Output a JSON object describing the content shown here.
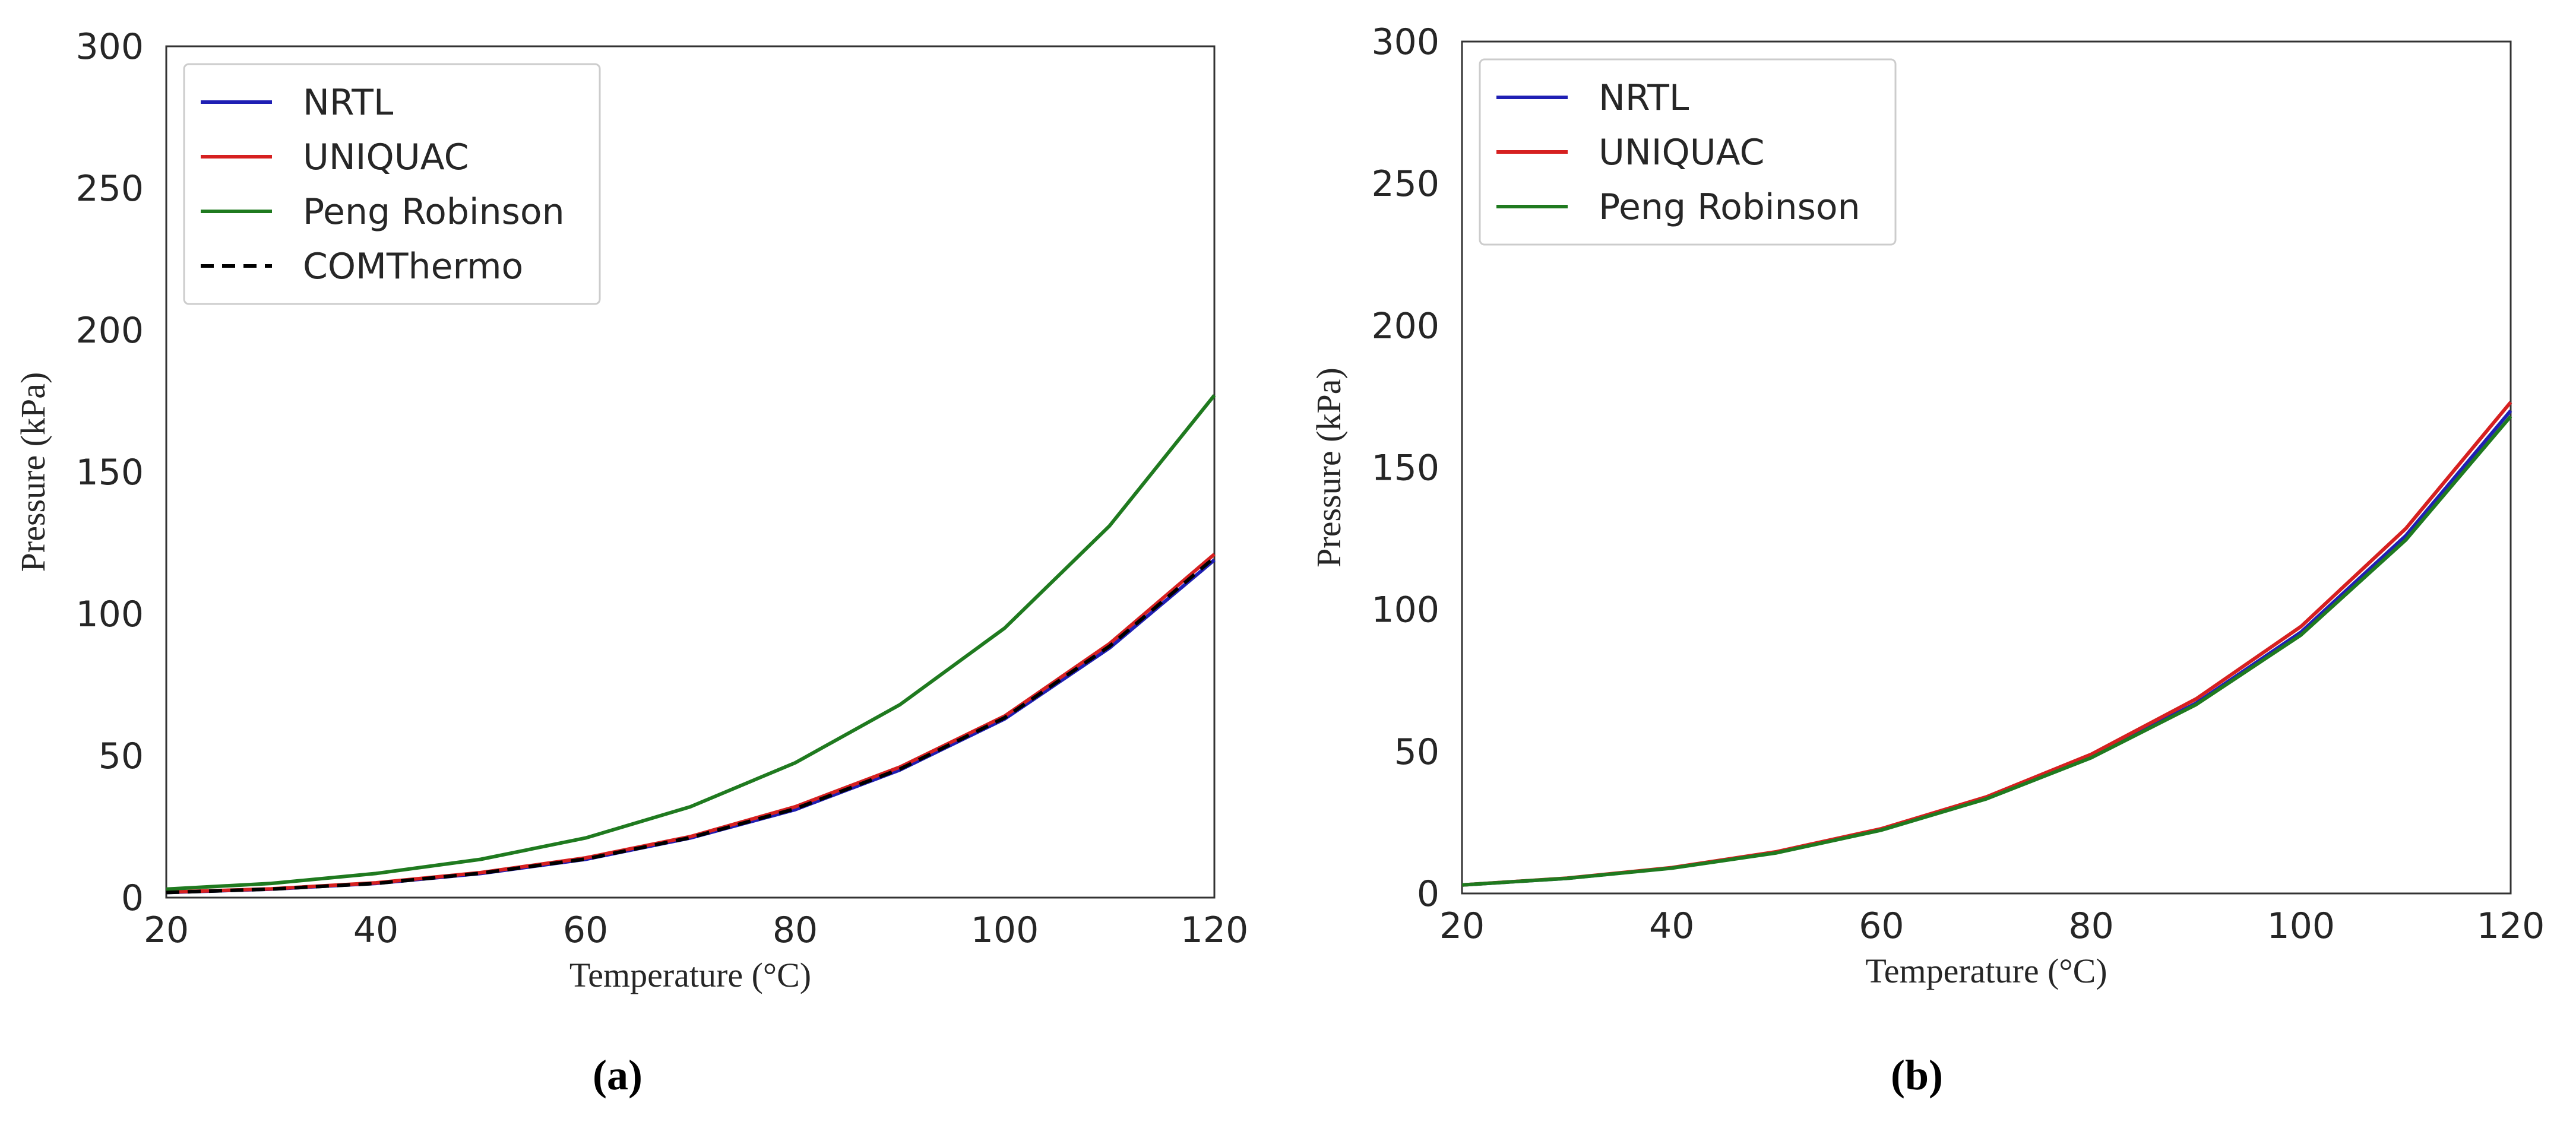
{
  "chart_data": [
    {
      "type": "line",
      "panel": "(a)",
      "title": "",
      "xlabel": "Temperature (°C)",
      "ylabel": "Pressure (kPa)",
      "xlim": [
        20,
        120
      ],
      "ylim": [
        0,
        300
      ],
      "xticks": [
        "20",
        "40",
        "60",
        "80",
        "100",
        "120"
      ],
      "yticks": [
        "0",
        "50",
        "100",
        "150",
        "200",
        "250",
        "300"
      ],
      "legend_position": "top-left",
      "x": [
        20,
        30,
        40,
        50,
        60,
        70,
        80,
        90,
        100,
        110,
        120
      ],
      "series": [
        {
          "name": "NRTL",
          "color": "#1f1fb4",
          "dash": "solid",
          "values": [
            1.8,
            3.0,
            5.0,
            8.5,
            13.5,
            21.0,
            31.0,
            45.0,
            63.0,
            88.0,
            119.0
          ]
        },
        {
          "name": "UNIQUAC",
          "color": "#d62020",
          "dash": "solid",
          "values": [
            1.9,
            3.1,
            5.2,
            8.8,
            14.0,
            21.5,
            32.0,
            46.0,
            64.0,
            89.5,
            121.0
          ]
        },
        {
          "name": "Peng Robinson",
          "color": "#1f7a1f",
          "dash": "solid",
          "values": [
            3.0,
            5.0,
            8.5,
            13.5,
            21.0,
            32.0,
            47.5,
            68.0,
            95.0,
            131.0,
            177.0
          ]
        },
        {
          "name": "COMThermo",
          "color": "#000000",
          "dash": "dashed",
          "values": [
            1.8,
            3.0,
            5.0,
            8.6,
            13.6,
            21.1,
            31.3,
            45.3,
            63.4,
            88.6,
            119.8
          ]
        }
      ]
    },
    {
      "type": "line",
      "panel": "(b)",
      "title": "",
      "xlabel": "Temperature (°C)",
      "ylabel": "Pressure (kPa)",
      "xlim": [
        20,
        120
      ],
      "ylim": [
        0,
        300
      ],
      "xticks": [
        "20",
        "40",
        "60",
        "80",
        "100",
        "120"
      ],
      "yticks": [
        "0",
        "50",
        "100",
        "150",
        "200",
        "250",
        "300"
      ],
      "legend_position": "top-left",
      "x": [
        20,
        30,
        40,
        50,
        60,
        70,
        80,
        90,
        100,
        110,
        120
      ],
      "series": [
        {
          "name": "NRTL",
          "color": "#1f1fb4",
          "dash": "solid",
          "values": [
            3.0,
            5.3,
            9.0,
            14.5,
            22.5,
            33.5,
            48.0,
            67.0,
            92.0,
            126.0,
            170.0
          ]
        },
        {
          "name": "UNIQUAC",
          "color": "#d62020",
          "dash": "solid",
          "values": [
            3.0,
            5.4,
            9.1,
            14.7,
            22.8,
            34.0,
            49.0,
            68.5,
            94.0,
            128.5,
            173.0
          ]
        },
        {
          "name": "Peng Robinson",
          "color": "#1f7a1f",
          "dash": "solid",
          "values": [
            3.0,
            5.3,
            8.9,
            14.3,
            22.3,
            33.3,
            47.8,
            66.5,
            91.0,
            124.5,
            168.0
          ]
        }
      ]
    }
  ]
}
